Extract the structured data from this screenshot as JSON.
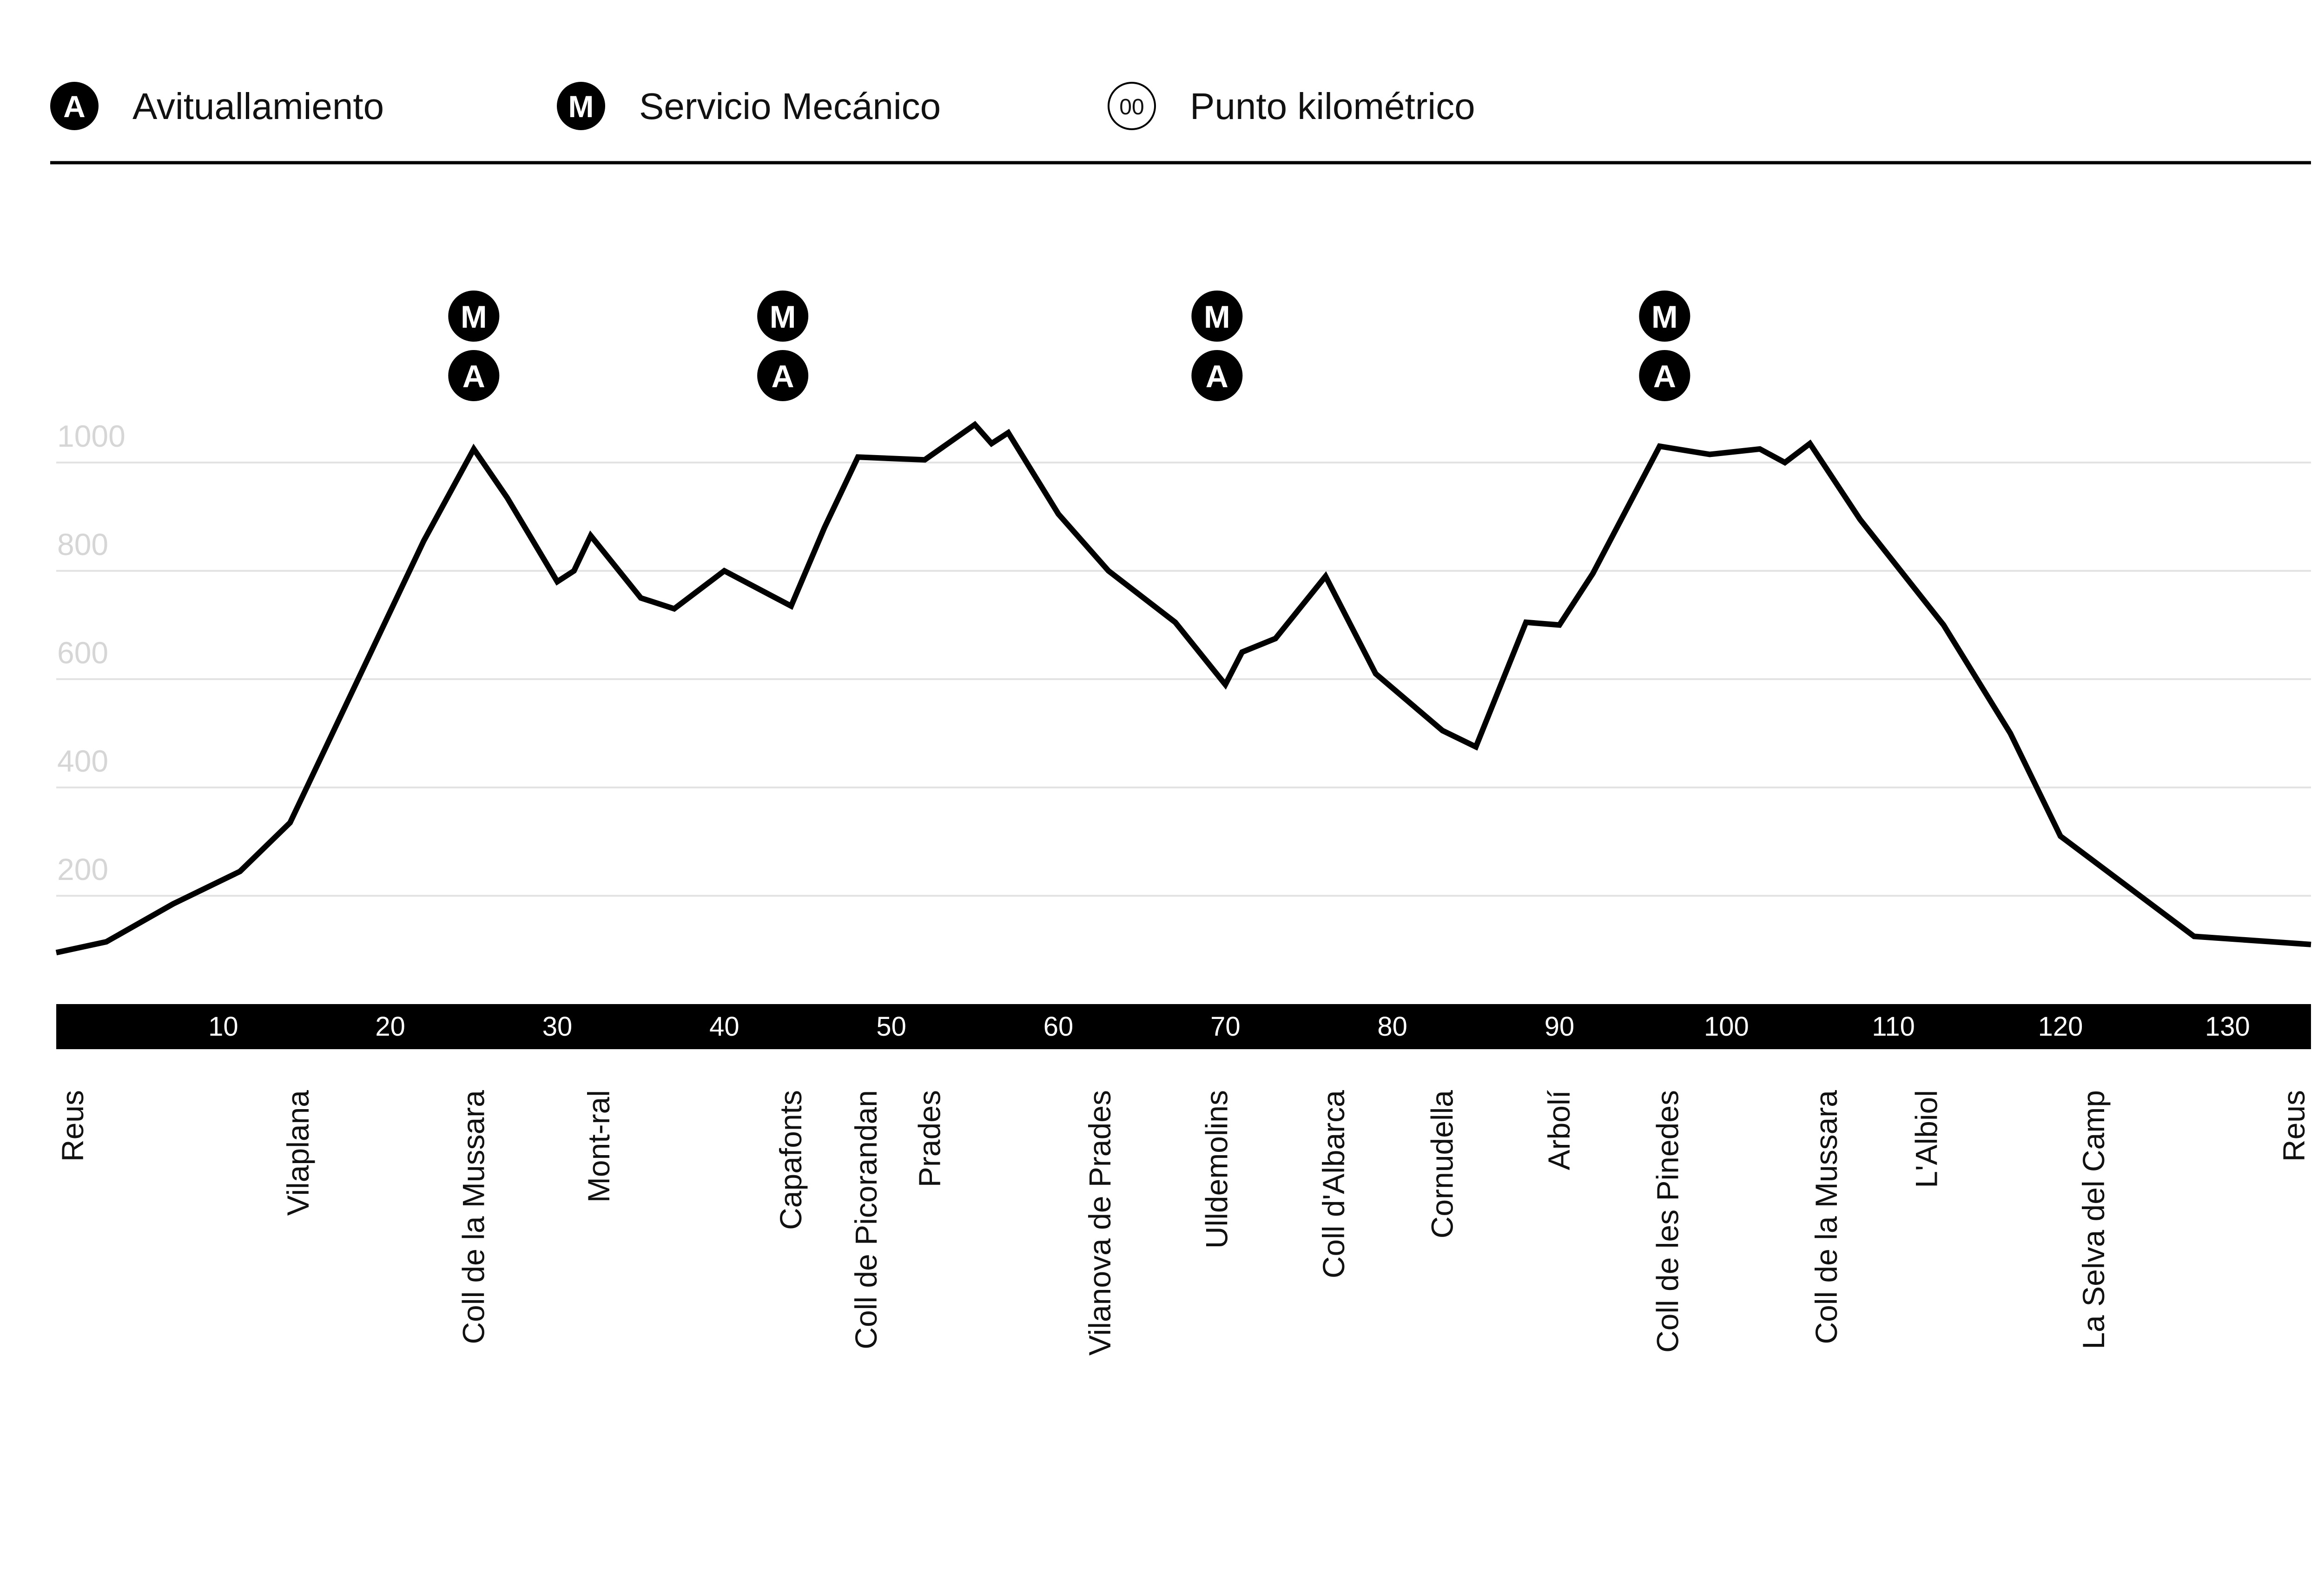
{
  "legend": {
    "items": [
      {
        "badge": "A",
        "label": "Avituallamiento",
        "style": "filled"
      },
      {
        "badge": "M",
        "label": "Servicio Mecánico",
        "style": "filled"
      },
      {
        "badge": "00",
        "label": "Punto kilométrico",
        "style": "outline"
      }
    ]
  },
  "colors": {
    "line": "#000000",
    "grid": "#e3e3e3",
    "ytick": "#d6d6d6",
    "axis_bar": "#000000",
    "badge": "#000000"
  },
  "chart_data": {
    "type": "line",
    "title": "",
    "xlabel": "",
    "ylabel": "",
    "xlim": [
      0,
      135
    ],
    "ylim": [
      0,
      1000
    ],
    "yticks": [
      200,
      400,
      600,
      800,
      1000
    ],
    "xticks": [
      10,
      20,
      30,
      40,
      50,
      60,
      70,
      80,
      90,
      100,
      110,
      120,
      130
    ],
    "grid": true,
    "series": [
      {
        "name": "",
        "x": [
          0,
          3,
          7,
          11,
          14,
          18,
          22,
          25,
          27,
          30,
          31,
          32,
          35,
          37,
          40,
          44,
          46,
          48,
          52,
          55,
          56,
          57,
          60,
          63,
          67,
          70,
          71,
          73,
          76,
          79,
          83,
          85,
          88,
          90,
          92,
          96,
          99,
          102,
          103.5,
          105,
          108,
          113,
          117,
          120,
          128,
          135
        ],
        "y": [
          95,
          115,
          185,
          245,
          335,
          595,
          855,
          1025,
          935,
          780,
          800,
          865,
          750,
          730,
          800,
          735,
          880,
          1010,
          1005,
          1070,
          1035,
          1055,
          905,
          800,
          705,
          590,
          650,
          675,
          790,
          610,
          505,
          475,
          705,
          700,
          795,
          1030,
          1015,
          1025,
          1000,
          1035,
          895,
          700,
          500,
          310,
          125,
          110
        ]
      }
    ],
    "service_points": [
      {
        "km": 25,
        "badges": [
          "M",
          "A"
        ]
      },
      {
        "km": 43.5,
        "badges": [
          "M",
          "A"
        ]
      },
      {
        "km": 69.5,
        "badges": [
          "M",
          "A"
        ]
      },
      {
        "km": 96.3,
        "badges": [
          "M",
          "A"
        ]
      }
    ],
    "places": [
      {
        "name": "Reus",
        "km": 1
      },
      {
        "name": "Vilaplana",
        "km": 14.5
      },
      {
        "name": "Coll de la Mussara",
        "km": 25
      },
      {
        "name": "Mont-ral",
        "km": 32.5
      },
      {
        "name": "Capafonts",
        "km": 44
      },
      {
        "name": "Coll de Picorandan",
        "km": 48.5
      },
      {
        "name": "Prades",
        "km": 52.3
      },
      {
        "name": "Vilanova de Prades",
        "km": 62.5
      },
      {
        "name": "Ulldemolins",
        "km": 69.5
      },
      {
        "name": "Coll d'Albarca",
        "km": 76.5
      },
      {
        "name": "Cornudella",
        "km": 83
      },
      {
        "name": "Arbolí",
        "km": 90
      },
      {
        "name": "Coll de les Pinedes",
        "km": 96.5
      },
      {
        "name": "Coll de la Mussara",
        "km": 106
      },
      {
        "name": "L'Albiol",
        "km": 112
      },
      {
        "name": "La Selva del Camp",
        "km": 122
      },
      {
        "name": "Reus",
        "km": 134
      }
    ]
  }
}
